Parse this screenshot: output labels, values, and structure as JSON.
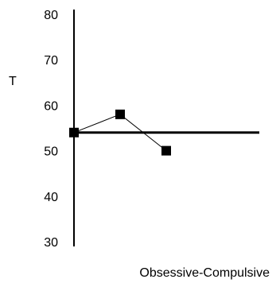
{
  "chart_data": {
    "type": "line",
    "title": "",
    "xlabel": "Obsessive-Compulsive",
    "ylabel": "T",
    "ylim": [
      30,
      80
    ],
    "yticks": [
      80,
      70,
      60,
      50,
      40,
      30
    ],
    "grid": false,
    "reference_line": 54,
    "series": [
      {
        "x": [
          1,
          2,
          3
        ],
        "values": [
          54,
          58,
          50
        ]
      }
    ]
  }
}
